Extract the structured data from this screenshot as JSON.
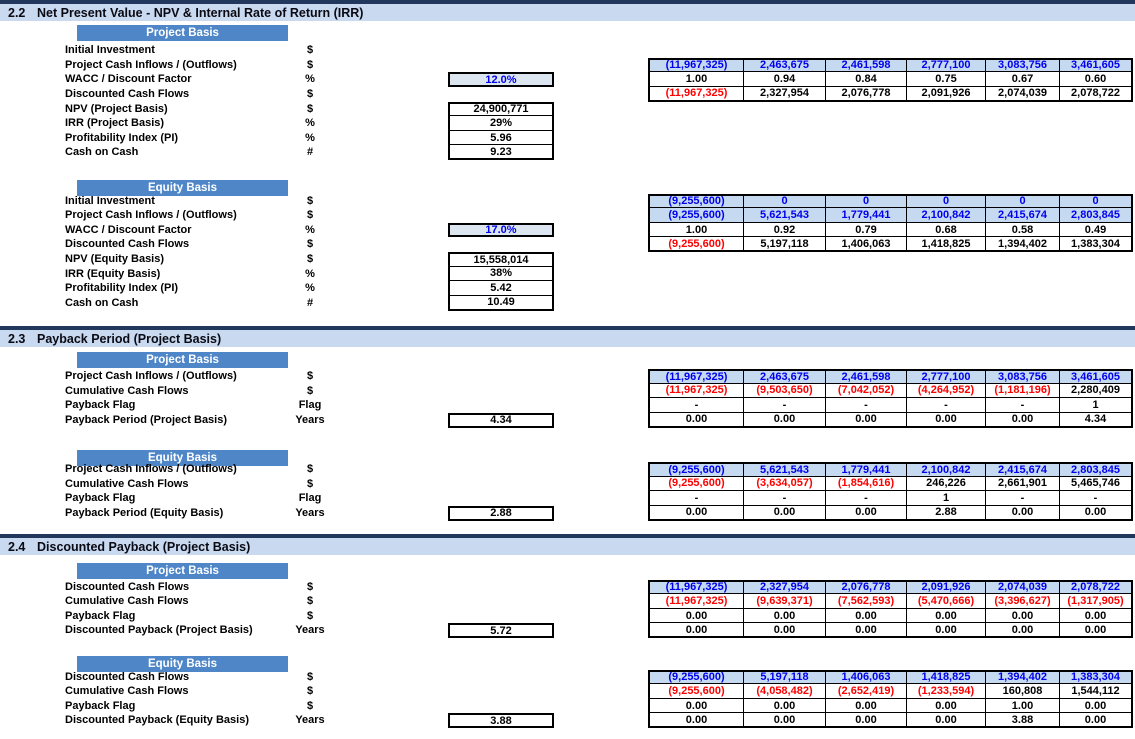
{
  "colors": {
    "navy_bar": "#22375C",
    "section_band": "#C9D9EF",
    "basis_header_blue": "#4E86C8",
    "table_row_blue": "#C5D9F1",
    "input_cell_bg": "#DCE6F1",
    "font_blue": "#0000EE",
    "font_red": "#FF0000"
  },
  "sections": [
    {
      "number": "2.2",
      "title": "Net Present Value - NPV & Internal Rate of Return (IRR)",
      "blocks": [
        {
          "header": "Project Basis",
          "rows": [
            {
              "label": "Initial Investment",
              "unit": "$"
            },
            {
              "label": "Project Cash Inflows / (Outflows)",
              "unit": "$",
              "cells": {
                "style": "blue",
                "values": [
                  "(11,967,325)",
                  "2,463,675",
                  "2,461,598",
                  "2,777,100",
                  "3,083,756",
                  "3,461,605"
                ]
              }
            },
            {
              "label": "WACC / Discount Factor",
              "unit": "%",
              "box": {
                "style": "input",
                "value": "12.0%"
              },
              "cells": {
                "style": "plain",
                "values": [
                  "1.00",
                  "0.94",
                  "0.84",
                  "0.75",
                  "0.67",
                  "0.60"
                ]
              }
            },
            {
              "label": "Discounted Cash Flows",
              "unit": "$",
              "cells": {
                "style": "plain",
                "values": [
                  "(11,967,325)",
                  "2,327,954",
                  "2,076,778",
                  "2,091,926",
                  "2,074,039",
                  "2,078,722"
                ]
              }
            },
            {
              "label": "NPV (Project Basis)",
              "unit": "$",
              "box": {
                "style": "output",
                "value": "24,900,771"
              }
            },
            {
              "label": "IRR (Project Basis)",
              "unit": "%",
              "box": {
                "style": "output",
                "value": "29%"
              }
            },
            {
              "label": "Profitability Index (PI)",
              "unit": "%",
              "box": {
                "style": "output",
                "value": "5.96"
              }
            },
            {
              "label": "Cash on Cash",
              "unit": "#",
              "box": {
                "style": "output",
                "value": "9.23"
              }
            }
          ]
        },
        {
          "header": "Equity Basis",
          "rows": [
            {
              "label": "Initial Investment",
              "unit": "$",
              "cells": {
                "style": "blue",
                "values": [
                  "(9,255,600)",
                  "0",
                  "0",
                  "0",
                  "0",
                  "0"
                ]
              }
            },
            {
              "label": "Project Cash Inflows / (Outflows)",
              "unit": "$",
              "cells": {
                "style": "blue",
                "values": [
                  "(9,255,600)",
                  "5,621,543",
                  "1,779,441",
                  "2,100,842",
                  "2,415,674",
                  "2,803,845"
                ]
              }
            },
            {
              "label": "WACC / Discount Factor",
              "unit": "%",
              "box": {
                "style": "input",
                "value": "17.0%"
              },
              "cells": {
                "style": "plain",
                "values": [
                  "1.00",
                  "0.92",
                  "0.79",
                  "0.68",
                  "0.58",
                  "0.49"
                ]
              }
            },
            {
              "label": "Discounted Cash Flows",
              "unit": "$",
              "cells": {
                "style": "plain",
                "values": [
                  "(9,255,600)",
                  "5,197,118",
                  "1,406,063",
                  "1,418,825",
                  "1,394,402",
                  "1,383,304"
                ]
              }
            },
            {
              "label": "NPV (Equity Basis)",
              "unit": "$",
              "box": {
                "style": "output",
                "value": "15,558,014"
              }
            },
            {
              "label": "IRR (Equity Basis)",
              "unit": "%",
              "box": {
                "style": "output",
                "value": "38%"
              }
            },
            {
              "label": "Profitability Index (PI)",
              "unit": "%",
              "box": {
                "style": "output",
                "value": "5.42"
              }
            },
            {
              "label": "Cash on Cash",
              "unit": "#",
              "box": {
                "style": "output",
                "value": "10.49"
              }
            }
          ]
        }
      ]
    },
    {
      "number": "2.3",
      "title": "Payback Period (Project Basis)",
      "blocks": [
        {
          "header": "Project Basis",
          "rows": [
            {
              "label": "Project Cash Inflows / (Outflows)",
              "unit": "$",
              "cells": {
                "style": "blue",
                "values": [
                  "(11,967,325)",
                  "2,463,675",
                  "2,461,598",
                  "2,777,100",
                  "3,083,756",
                  "3,461,605"
                ]
              }
            },
            {
              "label": "Cumulative Cash Flows",
              "unit": "$",
              "cells": {
                "style": "plain",
                "values": [
                  "(11,967,325)",
                  "(9,503,650)",
                  "(7,042,052)",
                  "(4,264,952)",
                  "(1,181,196)",
                  "2,280,409"
                ]
              }
            },
            {
              "label": "Payback Flag",
              "unit": "Flag",
              "cells": {
                "style": "plain",
                "values": [
                  "-",
                  "-",
                  "-",
                  "-",
                  "-",
                  "1"
                ]
              }
            },
            {
              "label": "Payback Period (Project Basis)",
              "unit": "Years",
              "box": {
                "style": "output",
                "value": "4.34"
              },
              "cells": {
                "style": "plain",
                "values": [
                  "0.00",
                  "0.00",
                  "0.00",
                  "0.00",
                  "0.00",
                  "4.34"
                ]
              }
            }
          ]
        },
        {
          "header": "Equity Basis",
          "rows": [
            {
              "label": "Project Cash Inflows / (Outflows)",
              "unit": "$",
              "cells": {
                "style": "blue",
                "values": [
                  "(9,255,600)",
                  "5,621,543",
                  "1,779,441",
                  "2,100,842",
                  "2,415,674",
                  "2,803,845"
                ]
              }
            },
            {
              "label": "Cumulative Cash Flows",
              "unit": "$",
              "cells": {
                "style": "plain",
                "values": [
                  "(9,255,600)",
                  "(3,634,057)",
                  "(1,854,616)",
                  "246,226",
                  "2,661,901",
                  "5,465,746"
                ]
              }
            },
            {
              "label": "Payback Flag",
              "unit": "Flag",
              "cells": {
                "style": "plain",
                "values": [
                  "-",
                  "-",
                  "-",
                  "1",
                  "-",
                  "-"
                ]
              }
            },
            {
              "label": "Payback Period (Equity Basis)",
              "unit": "Years",
              "box": {
                "style": "output",
                "value": "2.88"
              },
              "cells": {
                "style": "plain",
                "values": [
                  "0.00",
                  "0.00",
                  "0.00",
                  "2.88",
                  "0.00",
                  "0.00"
                ]
              }
            }
          ]
        }
      ]
    },
    {
      "number": "2.4",
      "title": "Discounted Payback (Project Basis)",
      "blocks": [
        {
          "header": "Project Basis",
          "rows": [
            {
              "label": "Discounted Cash Flows",
              "unit": "$",
              "cells": {
                "style": "blue",
                "values": [
                  "(11,967,325)",
                  "2,327,954",
                  "2,076,778",
                  "2,091,926",
                  "2,074,039",
                  "2,078,722"
                ]
              }
            },
            {
              "label": "Cumulative Cash Flows",
              "unit": "$",
              "cells": {
                "style": "plain",
                "values": [
                  "(11,967,325)",
                  "(9,639,371)",
                  "(7,562,593)",
                  "(5,470,666)",
                  "(3,396,627)",
                  "(1,317,905)"
                ]
              }
            },
            {
              "label": "Payback Flag",
              "unit": "$",
              "cells": {
                "style": "plain",
                "values": [
                  "0.00",
                  "0.00",
                  "0.00",
                  "0.00",
                  "0.00",
                  "0.00"
                ]
              }
            },
            {
              "label": "Discounted Payback (Project Basis)",
              "unit": "Years",
              "box": {
                "style": "output",
                "value": "5.72"
              },
              "cells": {
                "style": "plain",
                "values": [
                  "0.00",
                  "0.00",
                  "0.00",
                  "0.00",
                  "0.00",
                  "0.00"
                ]
              }
            }
          ]
        },
        {
          "header": "Equity Basis",
          "rows": [
            {
              "label": "Discounted Cash Flows",
              "unit": "$",
              "cells": {
                "style": "blue",
                "values": [
                  "(9,255,600)",
                  "5,197,118",
                  "1,406,063",
                  "1,418,825",
                  "1,394,402",
                  "1,383,304"
                ]
              }
            },
            {
              "label": "Cumulative Cash Flows",
              "unit": "$",
              "cells": {
                "style": "plain",
                "values": [
                  "(9,255,600)",
                  "(4,058,482)",
                  "(2,652,419)",
                  "(1,233,594)",
                  "160,808",
                  "1,544,112"
                ]
              }
            },
            {
              "label": "Payback Flag",
              "unit": "$",
              "cells": {
                "style": "plain",
                "values": [
                  "0.00",
                  "0.00",
                  "0.00",
                  "0.00",
                  "1.00",
                  "0.00"
                ]
              }
            },
            {
              "label": "Discounted Payback (Equity Basis)",
              "unit": "Years",
              "box": {
                "style": "output",
                "value": "3.88"
              },
              "cells": {
                "style": "plain",
                "values": [
                  "0.00",
                  "0.00",
                  "0.00",
                  "0.00",
                  "3.88",
                  "0.00"
                ]
              }
            }
          ]
        }
      ]
    }
  ]
}
